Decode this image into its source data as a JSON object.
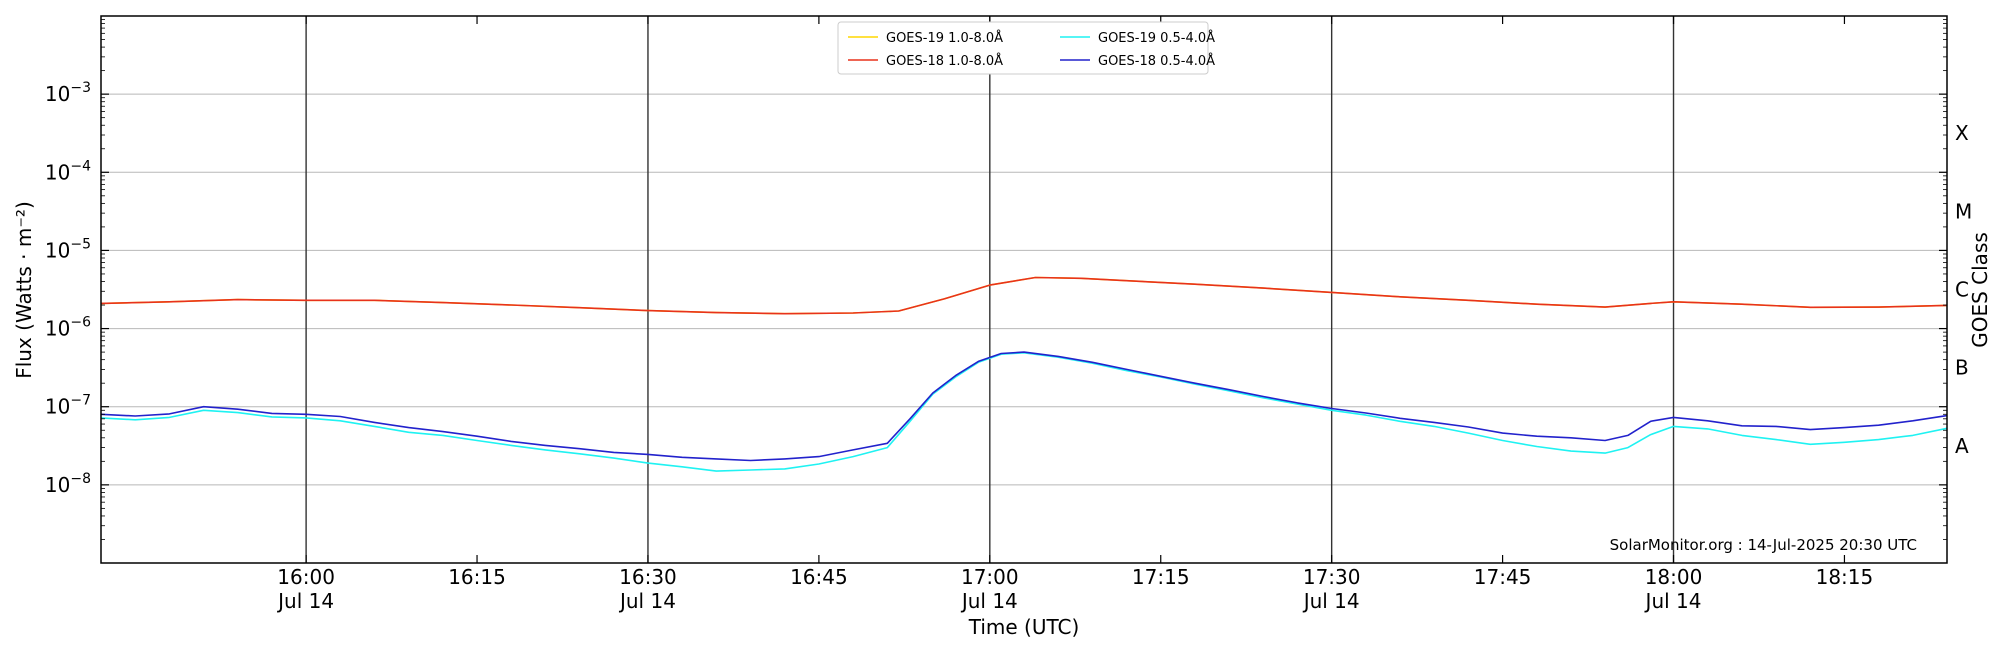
{
  "chart_data": {
    "type": "line",
    "xlabel": "Time (UTC)",
    "ylabel": "Flux (Watts · m⁻²)",
    "y2label": "GOES Class",
    "yscale": "log",
    "ylim": [
      1e-09,
      0.01
    ],
    "xlim": [
      "15:42",
      "18:24"
    ],
    "grid": "horizontal gridlines at each decade, vertical lines at every 30 minutes",
    "legend_position": "top-center",
    "credit": "SolarMonitor.org : 14-Jul-2025 20:30 UTC",
    "x_ticks": [
      {
        "time": "16:00",
        "label": "16:00",
        "date": "Jul 14",
        "vline": true
      },
      {
        "time": "16:15",
        "label": "16:15",
        "date": "",
        "vline": false
      },
      {
        "time": "16:30",
        "label": "16:30",
        "date": "Jul 14",
        "vline": true
      },
      {
        "time": "16:45",
        "label": "16:45",
        "date": "",
        "vline": false
      },
      {
        "time": "17:00",
        "label": "17:00",
        "date": "Jul 14",
        "vline": true
      },
      {
        "time": "17:15",
        "label": "17:15",
        "date": "",
        "vline": false
      },
      {
        "time": "17:30",
        "label": "17:30",
        "date": "Jul 14",
        "vline": true
      },
      {
        "time": "17:45",
        "label": "17:45",
        "date": "",
        "vline": false
      },
      {
        "time": "18:00",
        "label": "18:00",
        "date": "Jul 14",
        "vline": true
      },
      {
        "time": "18:15",
        "label": "18:15",
        "date": "",
        "vline": false
      }
    ],
    "y_ticks": [
      {
        "value": 1e-08,
        "base": "10",
        "exp": "−8"
      },
      {
        "value": 1e-07,
        "base": "10",
        "exp": "−7"
      },
      {
        "value": 1e-06,
        "base": "10",
        "exp": "−6"
      },
      {
        "value": 1e-05,
        "base": "10",
        "exp": "−5"
      },
      {
        "value": 0.0001,
        "base": "10",
        "exp": "−4"
      },
      {
        "value": 0.001,
        "base": "10",
        "exp": "−3"
      }
    ],
    "goes_classes": [
      {
        "label": "A",
        "value": 3.16e-08
      },
      {
        "label": "B",
        "value": 3.16e-07
      },
      {
        "label": "C",
        "value": 3.16e-06
      },
      {
        "label": "M",
        "value": 3.16e-05
      },
      {
        "label": "X",
        "value": 0.000316
      }
    ],
    "series": [
      {
        "name": "GOES-19 1.0-8.0Å",
        "color": "#FFD700",
        "x": [
          "15:42",
          "15:48",
          "15:54",
          "16:00",
          "16:06",
          "16:12",
          "16:18",
          "16:24",
          "16:30",
          "16:36",
          "16:42",
          "16:48",
          "16:52",
          "16:56",
          "17:00",
          "17:04",
          "17:08",
          "17:12",
          "17:18",
          "17:24",
          "17:30",
          "17:36",
          "17:42",
          "17:48",
          "17:54",
          "17:58",
          "18:00",
          "18:06",
          "18:12",
          "18:18",
          "18:24"
        ],
        "y": [
          2.1e-06,
          2.2e-06,
          2.35e-06,
          2.3e-06,
          2.3e-06,
          2.15e-06,
          2e-06,
          1.85e-06,
          1.7e-06,
          1.6e-06,
          1.55e-06,
          1.58e-06,
          1.68e-06,
          2.4e-06,
          3.6e-06,
          4.5e-06,
          4.4e-06,
          4.1e-06,
          3.7e-06,
          3.3e-06,
          2.9e-06,
          2.55e-06,
          2.3e-06,
          2.05e-06,
          1.88e-06,
          2.1e-06,
          2.2e-06,
          2.05e-06,
          1.87e-06,
          1.88e-06,
          1.98e-06
        ]
      },
      {
        "name": "GOES-18 1.0-8.0Å",
        "color": "#E8321C",
        "x": [
          "15:42",
          "15:48",
          "15:54",
          "16:00",
          "16:06",
          "16:12",
          "16:18",
          "16:24",
          "16:30",
          "16:36",
          "16:42",
          "16:48",
          "16:52",
          "16:56",
          "17:00",
          "17:04",
          "17:08",
          "17:12",
          "17:18",
          "17:24",
          "17:30",
          "17:36",
          "17:42",
          "17:48",
          "17:54",
          "17:58",
          "18:00",
          "18:06",
          "18:12",
          "18:18",
          "18:24"
        ],
        "y": [
          2.1e-06,
          2.2e-06,
          2.35e-06,
          2.3e-06,
          2.3e-06,
          2.15e-06,
          2e-06,
          1.85e-06,
          1.7e-06,
          1.6e-06,
          1.55e-06,
          1.58e-06,
          1.68e-06,
          2.4e-06,
          3.6e-06,
          4.5e-06,
          4.4e-06,
          4.1e-06,
          3.7e-06,
          3.3e-06,
          2.9e-06,
          2.55e-06,
          2.3e-06,
          2.05e-06,
          1.88e-06,
          2.1e-06,
          2.2e-06,
          2.05e-06,
          1.87e-06,
          1.88e-06,
          1.98e-06
        ]
      },
      {
        "name": "GOES-19 0.5-4.0Å",
        "color": "#1FF2F2",
        "x": [
          "15:42",
          "15:45",
          "15:48",
          "15:51",
          "15:54",
          "15:57",
          "16:00",
          "16:03",
          "16:06",
          "16:09",
          "16:12",
          "16:15",
          "16:18",
          "16:21",
          "16:24",
          "16:27",
          "16:30",
          "16:33",
          "16:36",
          "16:39",
          "16:42",
          "16:45",
          "16:48",
          "16:51",
          "16:53",
          "16:55",
          "16:57",
          "16:59",
          "17:01",
          "17:03",
          "17:06",
          "17:09",
          "17:12",
          "17:15",
          "17:18",
          "17:21",
          "17:24",
          "17:27",
          "17:30",
          "17:33",
          "17:36",
          "17:39",
          "17:42",
          "17:45",
          "17:48",
          "17:51",
          "17:54",
          "17:56",
          "17:58",
          "18:00",
          "18:03",
          "18:06",
          "18:09",
          "18:12",
          "18:15",
          "18:18",
          "18:21",
          "18:24"
        ],
        "y": [
          7.2e-08,
          6.8e-08,
          7.3e-08,
          9e-08,
          8.4e-08,
          7.4e-08,
          7.2e-08,
          6.6e-08,
          5.6e-08,
          4.7e-08,
          4.3e-08,
          3.7e-08,
          3.2e-08,
          2.8e-08,
          2.5e-08,
          2.2e-08,
          1.9e-08,
          1.7e-08,
          1.5e-08,
          1.55e-08,
          1.6e-08,
          1.85e-08,
          2.3e-08,
          3e-08,
          6.5e-08,
          1.45e-07,
          2.4e-07,
          3.7e-07,
          4.7e-07,
          4.9e-07,
          4.3e-07,
          3.6e-07,
          2.9e-07,
          2.4e-07,
          1.95e-07,
          1.6e-07,
          1.3e-07,
          1.08e-07,
          9e-08,
          7.8e-08,
          6.5e-08,
          5.6e-08,
          4.6e-08,
          3.7e-08,
          3.1e-08,
          2.7e-08,
          2.55e-08,
          3e-08,
          4.4e-08,
          5.6e-08,
          5.2e-08,
          4.3e-08,
          3.8e-08,
          3.3e-08,
          3.5e-08,
          3.8e-08,
          4.3e-08,
          5.3e-08
        ]
      },
      {
        "name": "GOES-18 0.5-4.0Å",
        "color": "#2222CC",
        "x": [
          "15:42",
          "15:45",
          "15:48",
          "15:51",
          "15:54",
          "15:57",
          "16:00",
          "16:03",
          "16:06",
          "16:09",
          "16:12",
          "16:15",
          "16:18",
          "16:21",
          "16:24",
          "16:27",
          "16:30",
          "16:33",
          "16:36",
          "16:39",
          "16:42",
          "16:45",
          "16:48",
          "16:51",
          "16:53",
          "16:55",
          "16:57",
          "16:59",
          "17:01",
          "17:03",
          "17:06",
          "17:09",
          "17:12",
          "17:15",
          "17:18",
          "17:21",
          "17:24",
          "17:27",
          "17:30",
          "17:33",
          "17:36",
          "17:39",
          "17:42",
          "17:45",
          "17:48",
          "17:51",
          "17:54",
          "17:56",
          "17:58",
          "18:00",
          "18:03",
          "18:06",
          "18:09",
          "18:12",
          "18:15",
          "18:18",
          "18:21",
          "18:24"
        ],
        "y": [
          8e-08,
          7.6e-08,
          8.1e-08,
          1e-07,
          9.3e-08,
          8.2e-08,
          8e-08,
          7.5e-08,
          6.3e-08,
          5.4e-08,
          4.8e-08,
          4.2e-08,
          3.6e-08,
          3.2e-08,
          2.9e-08,
          2.6e-08,
          2.45e-08,
          2.25e-08,
          2.15e-08,
          2.05e-08,
          2.15e-08,
          2.3e-08,
          2.8e-08,
          3.4e-08,
          7e-08,
          1.5e-07,
          2.5e-07,
          3.8e-07,
          4.8e-07,
          5e-07,
          4.4e-07,
          3.7e-07,
          3e-07,
          2.45e-07,
          2e-07,
          1.65e-07,
          1.35e-07,
          1.12e-07,
          9.5e-08,
          8.3e-08,
          7.1e-08,
          6.3e-08,
          5.5e-08,
          4.6e-08,
          4.2e-08,
          4e-08,
          3.7e-08,
          4.3e-08,
          6.5e-08,
          7.3e-08,
          6.6e-08,
          5.7e-08,
          5.6e-08,
          5.1e-08,
          5.4e-08,
          5.8e-08,
          6.6e-08,
          7.7e-08
        ]
      }
    ]
  }
}
